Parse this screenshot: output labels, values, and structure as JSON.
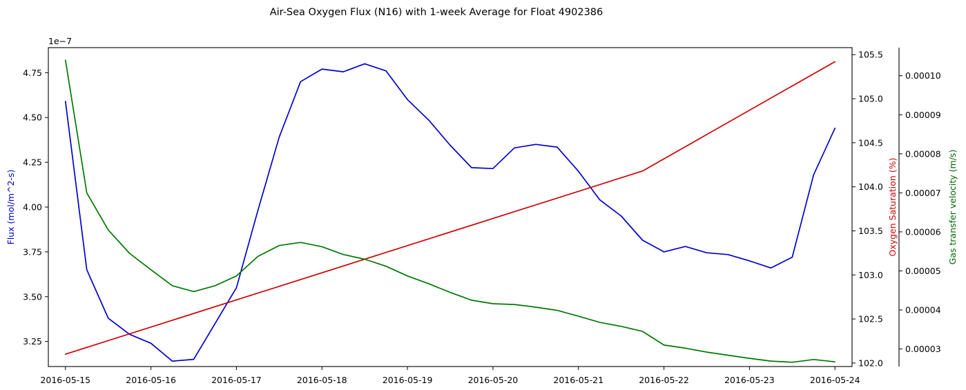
{
  "chart_data": {
    "type": "line",
    "title": "Air-Sea Oxygen Flux (N16) with 1-week Average for Float 4902386",
    "x_axis": {
      "type": "date",
      "range": [
        "2016-05-14T19:12",
        "2016-05-24T04:48"
      ],
      "tick_labels": [
        "2016-05-15",
        "2016-05-16",
        "2016-05-17",
        "2016-05-18",
        "2016-05-19",
        "2016-05-20",
        "2016-05-21",
        "2016-05-22",
        "2016-05-23",
        "2016-05-24"
      ]
    },
    "axes": {
      "flux": {
        "label": "Flux (mol/m^2-s)",
        "position": "left",
        "color": "#0000cc",
        "offset_text": "1e−7",
        "range": [
          3.11,
          4.89
        ],
        "tick_values": [
          3.25,
          3.5,
          3.75,
          4.0,
          4.25,
          4.5,
          4.75
        ],
        "tick_labels": [
          "3.25",
          "3.50",
          "3.75",
          "4.00",
          "4.25",
          "4.50",
          "4.75"
        ]
      },
      "saturation": {
        "label": "Oxygen Saturation (%)",
        "position": "right",
        "color": "#cc0000",
        "range": [
          101.96,
          105.58
        ],
        "tick_values": [
          102.0,
          102.5,
          103.0,
          103.5,
          104.0,
          104.5,
          105.0,
          105.5
        ],
        "tick_labels": [
          "102.0",
          "102.5",
          "103.0",
          "103.5",
          "104.0",
          "104.5",
          "105.0",
          "105.5"
        ]
      },
      "gas_transfer": {
        "label": "Gas transfer velocity (m/s)",
        "position": "right-outer",
        "color": "#006600",
        "range": [
          2.55e-05,
          0.0001072
        ],
        "tick_values": [
          3e-05,
          4e-05,
          5e-05,
          6e-05,
          7e-05,
          8e-05,
          9e-05,
          0.0001
        ],
        "tick_labels": [
          "0.00003",
          "0.00004",
          "0.00005",
          "0.00006",
          "0.00007",
          "0.00008",
          "0.00009",
          "0.00010"
        ]
      }
    },
    "series": [
      {
        "axis": "flux",
        "color": "#0000cc",
        "points": [
          [
            "2016-05-15T00:00",
            4.59
          ],
          [
            "2016-05-15T06:00",
            3.65
          ],
          [
            "2016-05-15T12:00",
            3.38
          ],
          [
            "2016-05-15T18:00",
            3.29
          ],
          [
            "2016-05-16T00:00",
            3.24
          ],
          [
            "2016-05-16T06:00",
            3.14
          ],
          [
            "2016-05-16T12:00",
            3.15
          ],
          [
            "2016-05-16T18:00",
            3.35
          ],
          [
            "2016-05-17T00:00",
            3.55
          ],
          [
            "2016-05-17T06:00",
            3.98
          ],
          [
            "2016-05-17T12:00",
            4.39
          ],
          [
            "2016-05-17T18:00",
            4.7
          ],
          [
            "2016-05-18T00:00",
            4.77
          ],
          [
            "2016-05-18T06:00",
            4.755
          ],
          [
            "2016-05-18T12:00",
            4.8
          ],
          [
            "2016-05-18T18:00",
            4.76
          ],
          [
            "2016-05-19T00:00",
            4.6
          ],
          [
            "2016-05-19T06:00",
            4.485
          ],
          [
            "2016-05-19T12:00",
            4.345
          ],
          [
            "2016-05-19T18:00",
            4.22
          ],
          [
            "2016-05-20T00:00",
            4.215
          ],
          [
            "2016-05-20T06:00",
            4.33
          ],
          [
            "2016-05-20T12:00",
            4.35
          ],
          [
            "2016-05-20T18:00",
            4.335
          ],
          [
            "2016-05-21T00:00",
            4.2
          ],
          [
            "2016-05-21T06:00",
            4.04
          ],
          [
            "2016-05-21T12:00",
            3.95
          ],
          [
            "2016-05-21T18:00",
            3.815
          ],
          [
            "2016-05-22T00:00",
            3.75
          ],
          [
            "2016-05-22T06:00",
            3.78
          ],
          [
            "2016-05-22T12:00",
            3.745
          ],
          [
            "2016-05-22T18:00",
            3.735
          ],
          [
            "2016-05-23T00:00",
            3.7
          ],
          [
            "2016-05-23T06:00",
            3.66
          ],
          [
            "2016-05-23T12:00",
            3.72
          ],
          [
            "2016-05-23T18:00",
            4.18
          ],
          [
            "2016-05-24T00:00",
            4.44
          ]
        ]
      },
      {
        "axis": "saturation",
        "color": "#cc0000",
        "points": [
          [
            "2016-05-15T00:00",
            102.1
          ],
          [
            "2016-05-21T18:00",
            104.18
          ],
          [
            "2016-05-24T00:00",
            105.42
          ]
        ]
      },
      {
        "axis": "gas_transfer",
        "color": "#007700",
        "points": [
          [
            "2016-05-15T00:00",
            0.000104
          ],
          [
            "2016-05-15T06:00",
            7e-05
          ],
          [
            "2016-05-15T12:00",
            6.05e-05
          ],
          [
            "2016-05-15T18:00",
            5.45e-05
          ],
          [
            "2016-05-16T00:00",
            5.03e-05
          ],
          [
            "2016-05-16T06:00",
            4.62e-05
          ],
          [
            "2016-05-16T12:00",
            4.47e-05
          ],
          [
            "2016-05-16T18:00",
            4.62e-05
          ],
          [
            "2016-05-17T00:00",
            4.87e-05
          ],
          [
            "2016-05-17T06:00",
            5.37e-05
          ],
          [
            "2016-05-17T12:00",
            5.65e-05
          ],
          [
            "2016-05-17T18:00",
            5.73e-05
          ],
          [
            "2016-05-18T00:00",
            5.62e-05
          ],
          [
            "2016-05-18T06:00",
            5.42e-05
          ],
          [
            "2016-05-18T12:00",
            5.3e-05
          ],
          [
            "2016-05-18T18:00",
            5.12e-05
          ],
          [
            "2016-05-19T00:00",
            4.87e-05
          ],
          [
            "2016-05-19T06:00",
            4.67e-05
          ],
          [
            "2016-05-19T12:00",
            4.45e-05
          ],
          [
            "2016-05-19T18:00",
            4.25e-05
          ],
          [
            "2016-05-20T00:00",
            4.16e-05
          ],
          [
            "2016-05-20T06:00",
            4.14e-05
          ],
          [
            "2016-05-20T12:00",
            4.07e-05
          ],
          [
            "2016-05-20T18:00",
            3.99e-05
          ],
          [
            "2016-05-21T00:00",
            3.84e-05
          ],
          [
            "2016-05-21T06:00",
            3.68e-05
          ],
          [
            "2016-05-21T12:00",
            3.58e-05
          ],
          [
            "2016-05-21T18:00",
            3.45e-05
          ],
          [
            "2016-05-22T00:00",
            3.1e-05
          ],
          [
            "2016-05-22T06:00",
            3.02e-05
          ],
          [
            "2016-05-22T12:00",
            2.92e-05
          ],
          [
            "2016-05-22T18:00",
            2.84e-05
          ],
          [
            "2016-05-23T00:00",
            2.76e-05
          ],
          [
            "2016-05-23T06:00",
            2.69e-05
          ],
          [
            "2016-05-23T12:00",
            2.66e-05
          ],
          [
            "2016-05-23T18:00",
            2.73e-05
          ],
          [
            "2016-05-24T00:00",
            2.67e-05
          ]
        ]
      }
    ],
    "grid": false,
    "legend": "none"
  }
}
